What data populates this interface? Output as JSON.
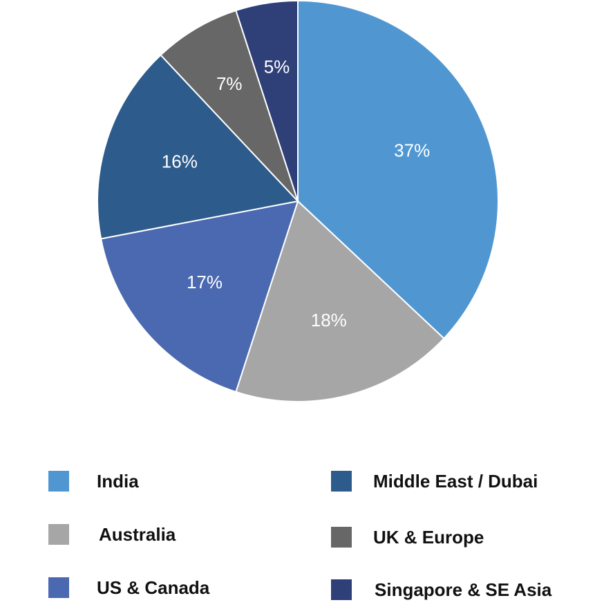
{
  "chart_data": {
    "type": "pie",
    "title": "",
    "categories": [
      "India",
      "Australia",
      "US & Canada",
      "Middle East / Dubai",
      "UK & Europe",
      "Singapore & SE Asia"
    ],
    "values": [
      37,
      18,
      17,
      16,
      7,
      5
    ],
    "labels": [
      "37%",
      "18%",
      "17%",
      "16%",
      "7%",
      "5%"
    ],
    "colors": [
      "#5097d2",
      "#a6a6a6",
      "#4a69b0",
      "#2d5b8b",
      "#676767",
      "#2f3f77"
    ],
    "legend_placement": "bottom",
    "legend": {
      "left_column": [
        "India",
        "Australia",
        "US & Canada"
      ],
      "right_column": [
        "Middle East / Dubai",
        "UK & Europe",
        "Singapore & SE Asia"
      ]
    }
  }
}
